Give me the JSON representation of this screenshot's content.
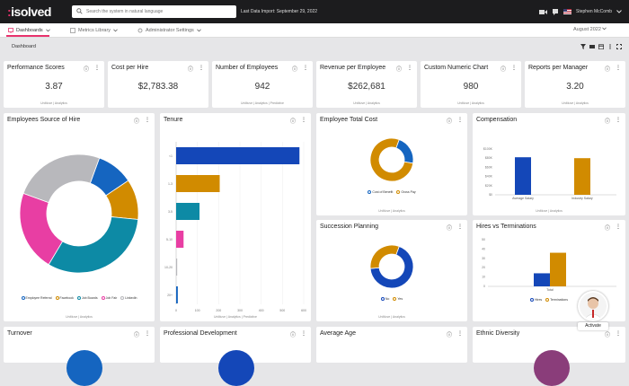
{
  "app": {
    "logo_main": "isolved",
    "logo_prefix": ":"
  },
  "topbar": {
    "search_placeholder": "Search the system in natural language",
    "last_import": "Last Data Import: September 29, 2022",
    "username": "Stephen McComb"
  },
  "nav": {
    "tabs": [
      {
        "label": "Dashboards",
        "icon": "dashboard-icon"
      },
      {
        "label": "Metrics Library",
        "icon": "library-icon"
      },
      {
        "label": "Administrator Settings",
        "icon": "settings-icon"
      }
    ],
    "period": "August 2022"
  },
  "subbar": {
    "title": "Dashboard"
  },
  "kpis": [
    {
      "title": "Performance Scores",
      "value": "3.87",
      "footer": "UnMuve | Analytics"
    },
    {
      "title": "Cost per Hire",
      "value": "$2,783.38",
      "footer": ""
    },
    {
      "title": "Number of Employees",
      "value": "942",
      "footer": "UnMuve | Analytics | Predictive"
    },
    {
      "title": "Revenue per Employee",
      "value": "$262,681",
      "footer": "UnMuve | Analytics"
    },
    {
      "title": "Custom Numeric Chart",
      "value": "980",
      "footer": "UnMuve | Analytics"
    },
    {
      "title": "Reports per Manager",
      "value": "3.20",
      "footer": "UnMuve | Analytics"
    }
  ],
  "charts": {
    "source_of_hire": {
      "title": "Employees Source of Hire",
      "footer": "UnMuve | Analytics",
      "chart_data": {
        "type": "pie",
        "labels": [
          "Employee Referral",
          "Facebook",
          "Job Boards",
          "Job Fair",
          "LinkedIn"
        ],
        "values": [
          10,
          11,
          32,
          22,
          25
        ],
        "colors": [
          "#1565c0",
          "#d18b00",
          "#0d8aa5",
          "#e83ea3",
          "#b8b8bc"
        ]
      }
    },
    "tenure": {
      "title": "Tenure",
      "footer": "UnMuve | Analytics | Predictive",
      "chart_data": {
        "type": "bar",
        "orientation": "horizontal",
        "categories": [
          "<1",
          "1-3",
          "3-5",
          "5-10",
          "10-20",
          "20+"
        ],
        "values": [
          580,
          205,
          110,
          35,
          5,
          8
        ],
        "colors": [
          "#1447b8",
          "#d18b00",
          "#0d8aa5",
          "#e83ea3",
          "#b8b8bc",
          "#1565c0"
        ],
        "xticks": [
          "0",
          "100",
          "200",
          "300",
          "400",
          "500",
          "600"
        ],
        "xlim": [
          0,
          600
        ]
      }
    },
    "total_cost": {
      "title": "Employee Total Cost",
      "footer": "UnMuve | Analytics",
      "chart_data": {
        "type": "pie",
        "labels": [
          "Cost of Benefit",
          "Gross Pay"
        ],
        "values": [
          22,
          78
        ],
        "colors": [
          "#1565c0",
          "#d18b00"
        ]
      }
    },
    "compensation": {
      "title": "Compensation",
      "footer": "UnMuve | Analytics",
      "chart_data": {
        "type": "bar",
        "categories": [
          "Average Salary",
          "Industry Salary"
        ],
        "values": [
          82000,
          80000
        ],
        "colors": [
          "#1447b8",
          "#d18b00"
        ],
        "yticks": [
          "$0",
          "$20K",
          "$40K",
          "$60K",
          "$80K",
          "$100K"
        ],
        "ylim": [
          0,
          100000
        ]
      }
    },
    "succession": {
      "title": "Succession Planning",
      "footer": "UnMuve | Analytics",
      "chart_data": {
        "type": "pie",
        "labels": [
          "No",
          "Yes"
        ],
        "values": [
          68,
          32
        ],
        "colors": [
          "#1447b8",
          "#d18b00"
        ]
      }
    },
    "hires_terms": {
      "title": "Hires vs Terminations",
      "footer": "",
      "chart_data": {
        "type": "bar",
        "categories": [
          "Total"
        ],
        "series": [
          {
            "name": "Hires",
            "values": [
              14
            ],
            "color": "#1447b8"
          },
          {
            "name": "Terminations",
            "values": [
              36
            ],
            "color": "#d18b00"
          }
        ],
        "yticks": [
          "0",
          "10",
          "20",
          "30",
          "40",
          "50"
        ],
        "ylim": [
          0,
          50
        ]
      }
    }
  },
  "bottom_cards": [
    {
      "title": "Turnover"
    },
    {
      "title": "Professional Development"
    },
    {
      "title": "Average Age"
    },
    {
      "title": "Ethnic Diversity"
    }
  ],
  "assistant": {
    "button_label": "Activate"
  }
}
